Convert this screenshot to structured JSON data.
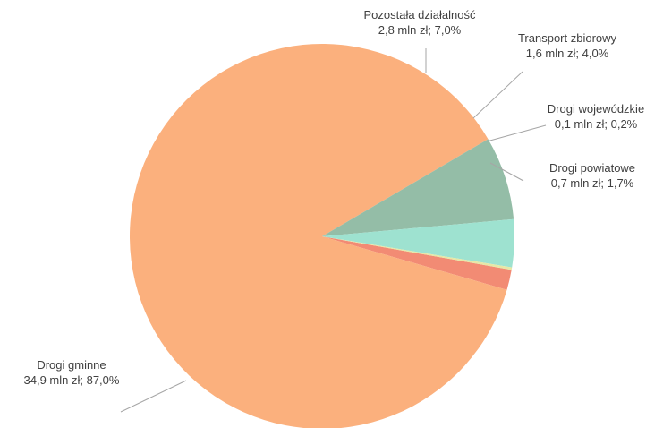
{
  "chart_data": {
    "type": "pie",
    "title": "",
    "unit": "mln zł",
    "slices": [
      {
        "name": "Drogi powiatowe",
        "value": 0.7,
        "percent": 1.7,
        "label_line1": "Drogi powiatowe",
        "label_line2": "0,7 mln zł; 1,7%",
        "color": "#f28b74"
      },
      {
        "name": "Drogi gminne",
        "value": 34.9,
        "percent": 87.0,
        "label_line1": "Drogi gminne",
        "label_line2": "34,9 mln zł; 87,0%",
        "color": "#fbb07d"
      },
      {
        "name": "Pozostała działalność",
        "value": 2.8,
        "percent": 7.0,
        "label_line1": "Pozostała działalność",
        "label_line2": "2,8 mln zł; 7,0%",
        "color": "#94bda7"
      },
      {
        "name": "Transport zbiorowy",
        "value": 1.6,
        "percent": 4.0,
        "label_line1": "Transport zbiorowy",
        "label_line2": "1,6 mln zł; 4,0%",
        "color": "#9ee2d0"
      },
      {
        "name": "Drogi wojewódzkie",
        "value": 0.1,
        "percent": 0.2,
        "label_line1": "Drogi wojewódzkie",
        "label_line2": "0,1 mln zł; 0,2%",
        "color": "#e7e7a6"
      }
    ]
  }
}
